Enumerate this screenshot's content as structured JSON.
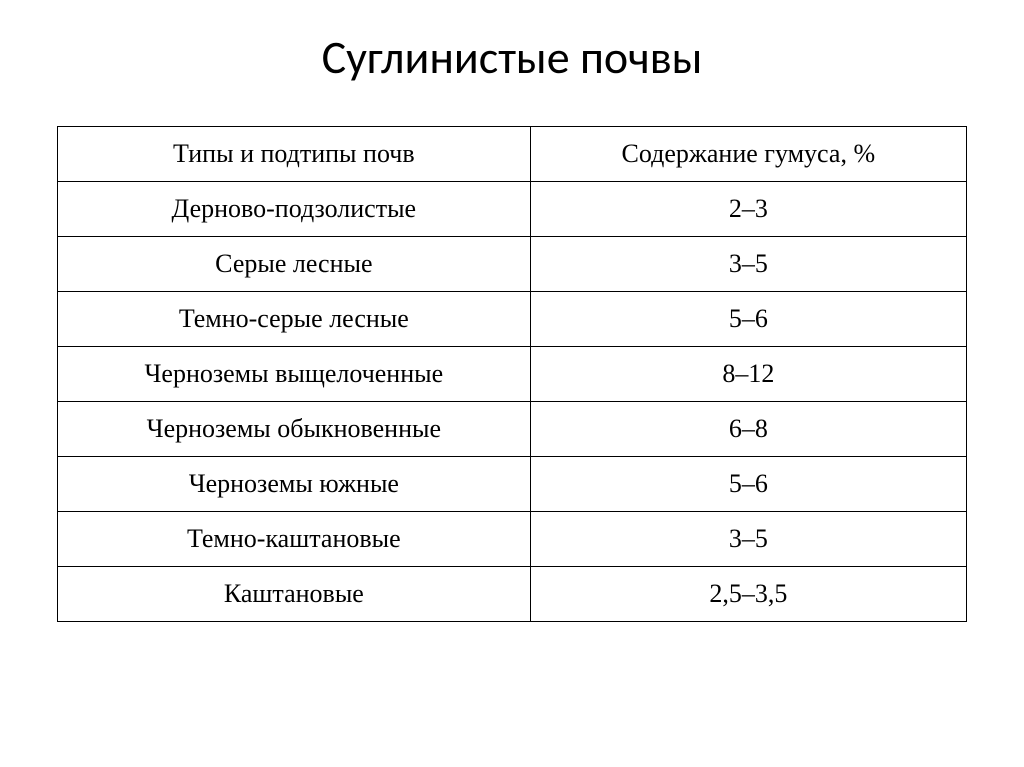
{
  "title": "Суглинистые почвы",
  "table": {
    "columns": [
      "Типы и подтипы почв",
      "Содержание гумуса, %"
    ],
    "rows": [
      [
        "Дерново-подзолистые",
        "2–3"
      ],
      [
        "Серые лесные",
        "3–5"
      ],
      [
        "Темно-серые лесные",
        "5–6"
      ],
      [
        "Черноземы выщелоченные",
        "8–12"
      ],
      [
        "Черноземы обыкновенные",
        "6–8"
      ],
      [
        "Черноземы южные",
        "5–6"
      ],
      [
        "Темно-каштановые",
        "3–5"
      ],
      [
        "Каштановые",
        "2,5–3,5"
      ]
    ],
    "border_color": "#000000",
    "background_color": "#ffffff",
    "title_fontsize": 46,
    "cell_fontsize": 26,
    "column_widths": [
      "52%",
      "48%"
    ],
    "text_align": "center"
  }
}
